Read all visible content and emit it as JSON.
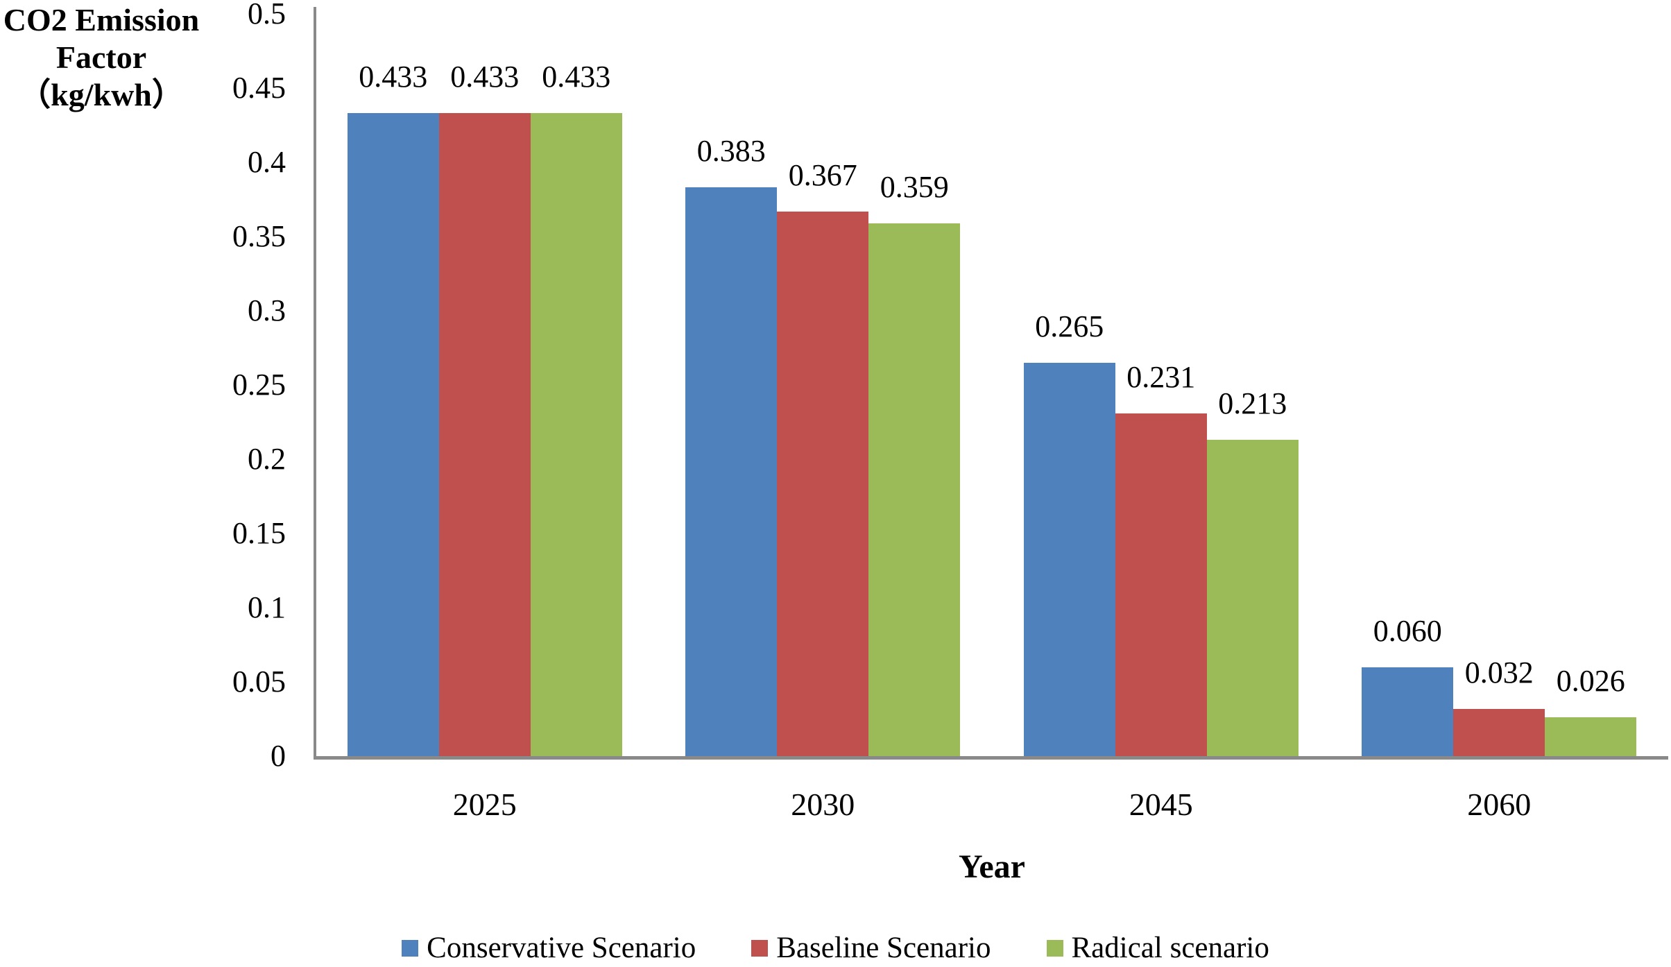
{
  "chart_data": {
    "type": "bar",
    "title": "",
    "categories": [
      "2025",
      "2030",
      "2045",
      "2060"
    ],
    "series": [
      {
        "name": "Conservative Scenario",
        "color": "#4F81BD",
        "values": [
          0.433,
          0.383,
          0.265,
          0.06
        ],
        "labels": [
          "0.433",
          "0.383",
          "0.265",
          "0.060"
        ]
      },
      {
        "name": "Baseline Scenario",
        "color": "#C0504D",
        "values": [
          0.433,
          0.367,
          0.231,
          0.032
        ],
        "labels": [
          "0.433",
          "0.367",
          "0.231",
          "0.032"
        ]
      },
      {
        "name": "Radical scenario",
        "color": "#9BBB59",
        "values": [
          0.433,
          0.359,
          0.213,
          0.026
        ],
        "labels": [
          "0.433",
          "0.359",
          "0.213",
          "0.026"
        ]
      }
    ],
    "xlabel": "Year",
    "ylabel": "CO2 Emission Factor（kg/kwh）",
    "ylabel_lines": [
      "CO2 Emission",
      "Factor",
      "（kg/kwh）"
    ],
    "ylim": [
      0,
      0.5
    ],
    "yticks": [
      "0.5",
      "0.45",
      "0.4",
      "0.35",
      "0.3",
      "0.25",
      "0.2",
      "0.15",
      "0.1",
      "0.05",
      "0"
    ],
    "ytick_values": [
      0.5,
      0.45,
      0.4,
      0.35,
      0.3,
      0.25,
      0.2,
      0.15,
      0.1,
      0.05,
      0
    ],
    "grid": "off",
    "legend_position": "bottom",
    "data_labels": "on",
    "axis_color": "#898989",
    "text_color": "#000000",
    "background": "#FFFFFF"
  }
}
